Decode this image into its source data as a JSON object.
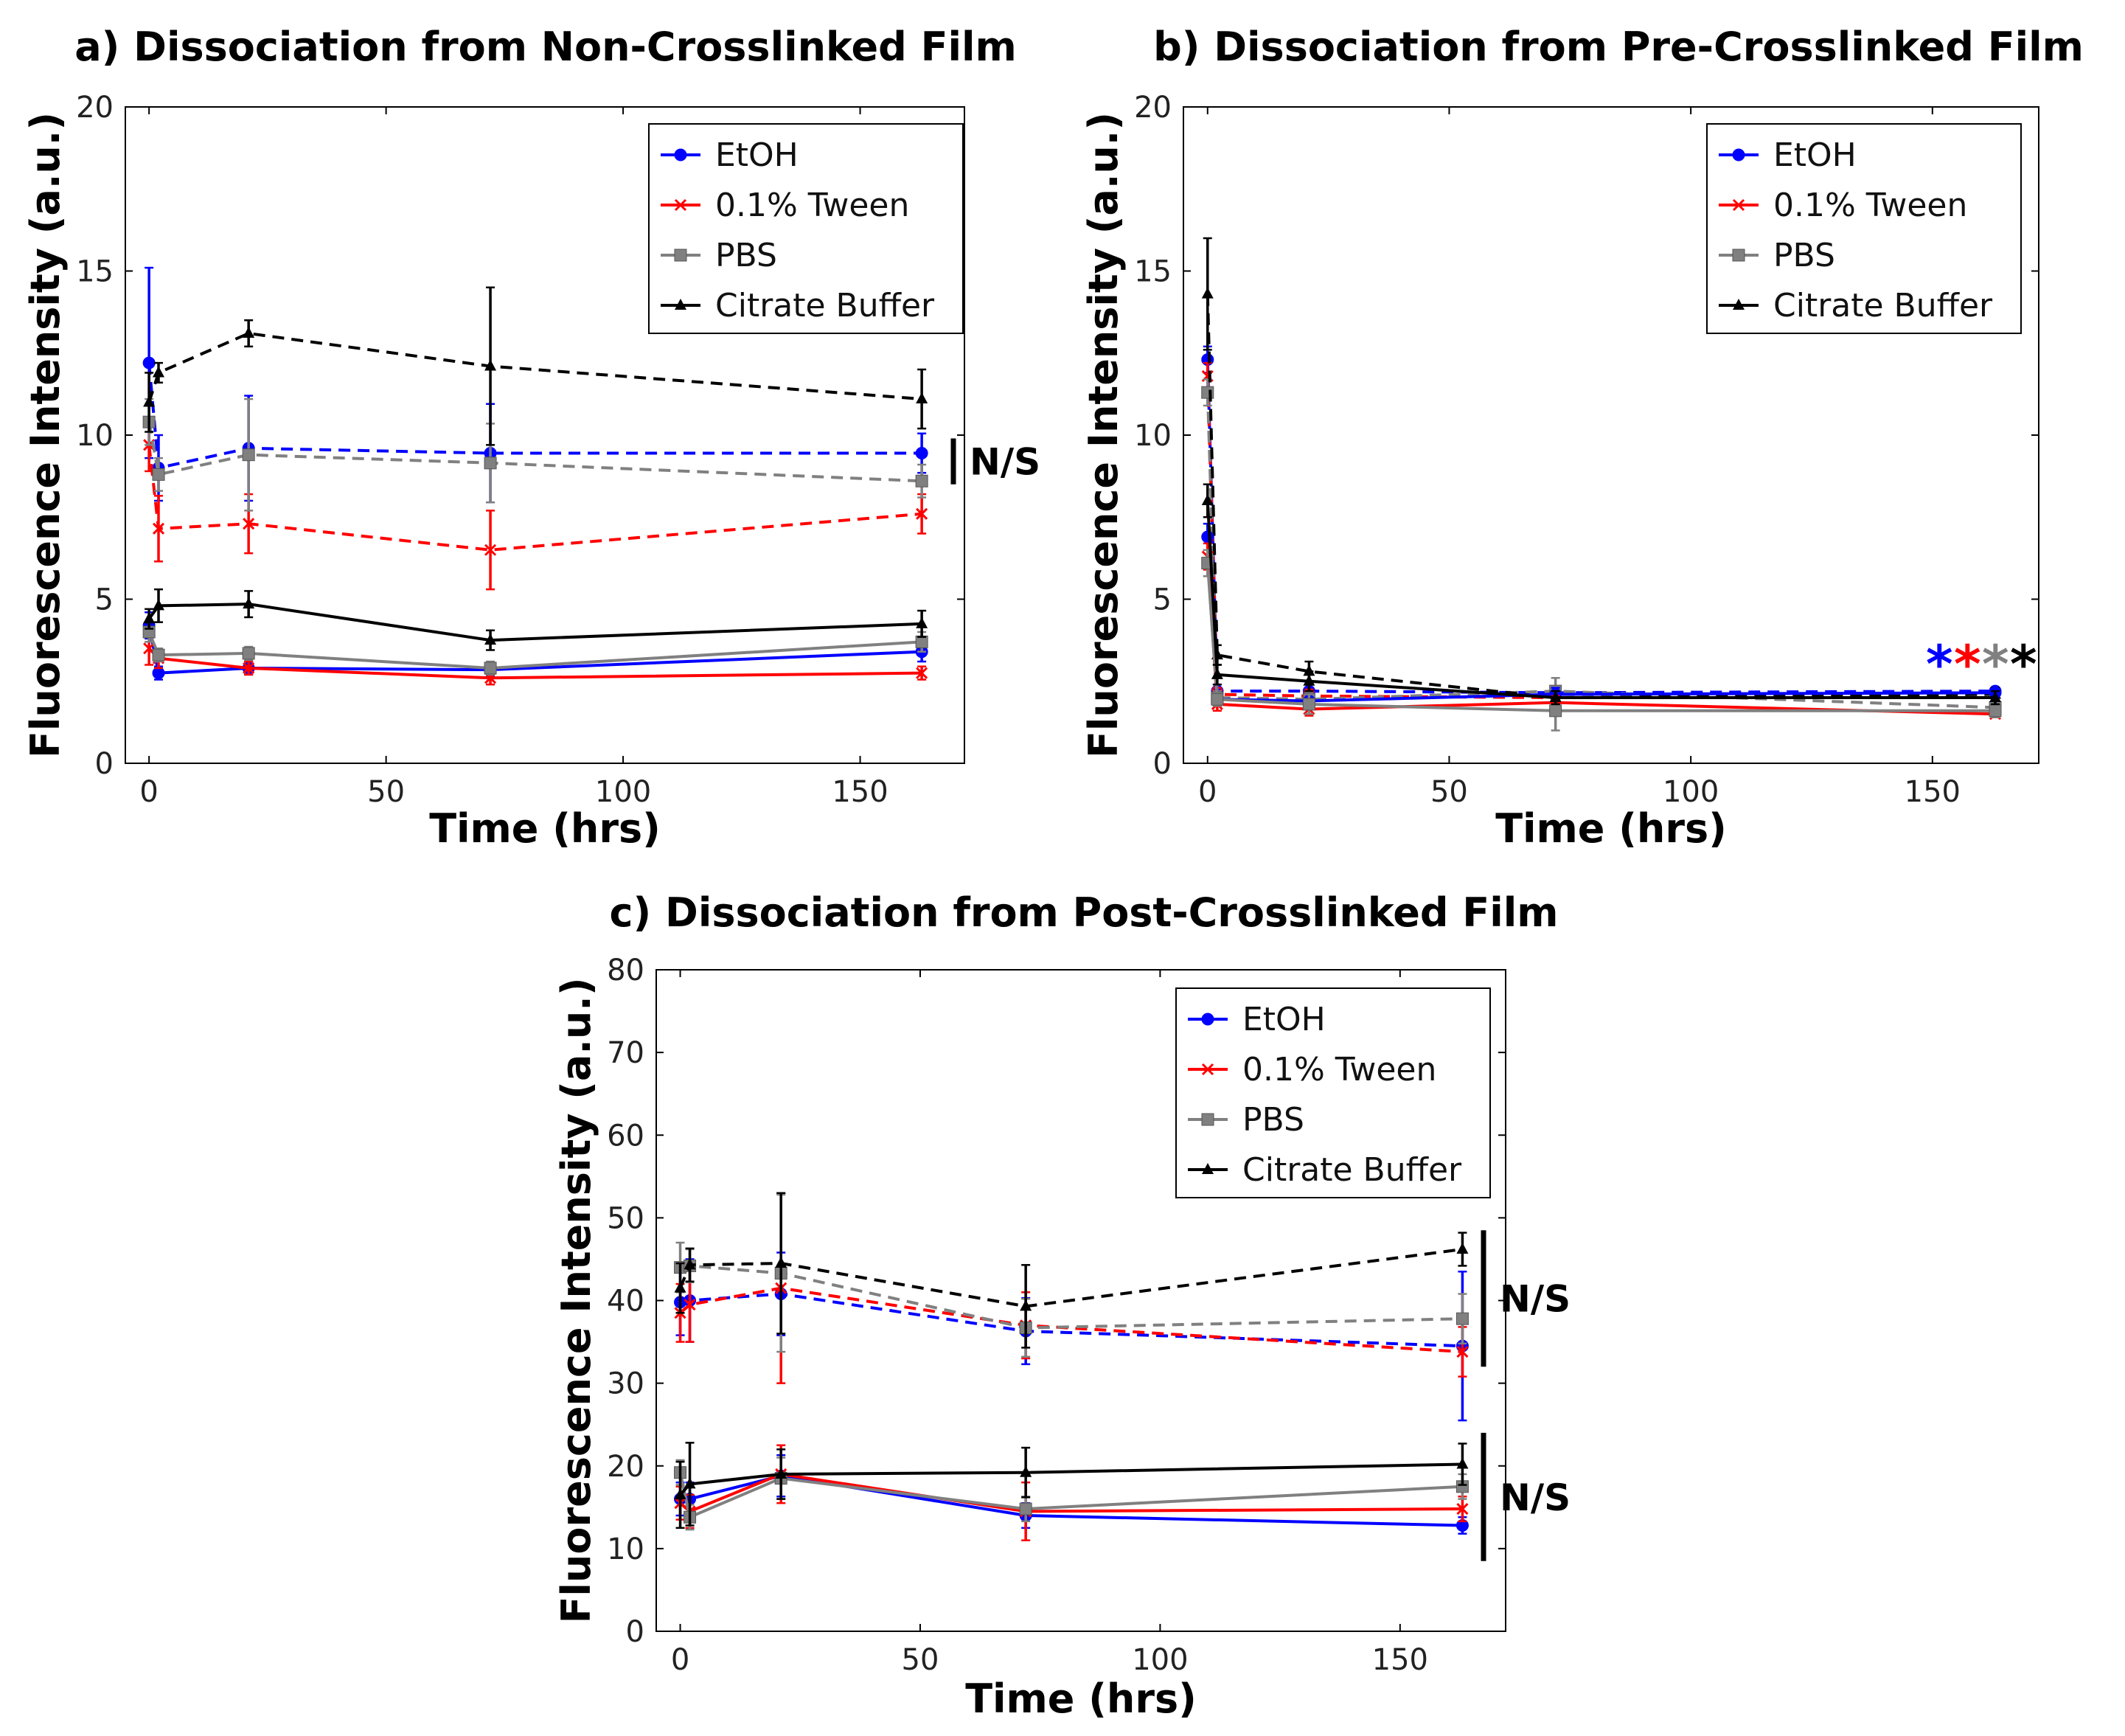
{
  "chart_data": [
    {
      "type": "line",
      "title": "a) Dissociation from Non-Crosslinked Film",
      "xlabel": "Time (hrs)",
      "ylabel": "Fluorescence Intensity (a.u.)",
      "xlim": [
        -5,
        172
      ],
      "ylim": [
        0,
        20
      ],
      "xticks": [
        "0",
        "50",
        "100",
        "150"
      ],
      "yticks": [
        "0",
        "5",
        "10",
        "15",
        "20"
      ],
      "legend": [
        "EtOH",
        "0.1% Tween",
        "PBS",
        "Citrate Buffer"
      ],
      "legend_position": "upper-right",
      "x": [
        0,
        2,
        21,
        72,
        163
      ],
      "series": [
        {
          "name": "EtOH",
          "color": "#0000ff",
          "marker": "circle",
          "linestyle": "dashed",
          "values": [
            12.2,
            9.0,
            9.6,
            9.45,
            9.45
          ],
          "errors": [
            2.9,
            1.0,
            1.6,
            1.5,
            0.6
          ]
        },
        {
          "name": "0.1% Tween",
          "color": "#ff0000",
          "marker": "x",
          "linestyle": "dashed",
          "values": [
            9.7,
            7.15,
            7.3,
            6.5,
            7.6
          ],
          "errors": [
            0.8,
            1.0,
            0.9,
            1.2,
            0.6
          ]
        },
        {
          "name": "PBS",
          "color": "#808080",
          "marker": "square",
          "linestyle": "dashed",
          "values": [
            10.4,
            8.8,
            9.4,
            9.15,
            8.6
          ],
          "errors": [
            0.7,
            0.5,
            1.7,
            1.2,
            0.5
          ]
        },
        {
          "name": "Citrate Buffer",
          "color": "#000000",
          "marker": "triangle",
          "linestyle": "dashed",
          "values": [
            11.0,
            11.9,
            13.1,
            12.1,
            11.1
          ],
          "errors": [
            0.9,
            0.3,
            0.4,
            2.4,
            0.9
          ]
        },
        {
          "name": "EtOH",
          "color": "#0000ff",
          "marker": "circle",
          "linestyle": "solid",
          "values": [
            4.2,
            2.75,
            2.9,
            2.85,
            3.4
          ],
          "errors": [
            0.4,
            0.2,
            0.2,
            0.2,
            0.3
          ]
        },
        {
          "name": "0.1% Tween",
          "color": "#ff0000",
          "marker": "x",
          "linestyle": "solid",
          "values": [
            3.5,
            3.2,
            2.9,
            2.6,
            2.75
          ],
          "errors": [
            0.5,
            0.3,
            0.2,
            0.2,
            0.2
          ]
        },
        {
          "name": "PBS",
          "color": "#808080",
          "marker": "square",
          "linestyle": "solid",
          "values": [
            4.0,
            3.3,
            3.35,
            2.9,
            3.7
          ],
          "errors": [
            0.3,
            0.2,
            0.2,
            0.2,
            0.3
          ]
        },
        {
          "name": "Citrate Buffer",
          "color": "#000000",
          "marker": "triangle",
          "linestyle": "solid",
          "values": [
            4.4,
            4.8,
            4.85,
            3.75,
            4.25
          ],
          "errors": [
            0.3,
            0.5,
            0.4,
            0.3,
            0.4
          ]
        }
      ],
      "annotations": [
        {
          "text": "N/S",
          "type": "bracket",
          "y_range": [
            8.5,
            9.9
          ]
        }
      ]
    },
    {
      "type": "line",
      "title": "b) Dissociation from Pre-Crosslinked Film",
      "xlabel": "Time (hrs)",
      "ylabel": "Fluorescence Intensity (a.u.)",
      "xlim": [
        -5,
        172
      ],
      "ylim": [
        0,
        20
      ],
      "xticks": [
        "0",
        "50",
        "100",
        "150"
      ],
      "yticks": [
        "0",
        "5",
        "10",
        "15",
        "20"
      ],
      "legend": [
        "EtOH",
        "0.1% Tween",
        "PBS",
        "Citrate Buffer"
      ],
      "legend_position": "upper-right",
      "x": [
        0,
        2,
        21,
        72,
        163
      ],
      "series": [
        {
          "name": "EtOH",
          "color": "#0000ff",
          "marker": "circle",
          "linestyle": "dashed",
          "values": [
            12.3,
            2.2,
            2.2,
            2.15,
            2.2
          ],
          "errors": [
            0.4,
            0.2,
            0.2,
            0.2,
            0.1
          ]
        },
        {
          "name": "0.1% Tween",
          "color": "#ff0000",
          "marker": "x",
          "linestyle": "dashed",
          "values": [
            11.8,
            2.1,
            2.05,
            2.0,
            2.0
          ],
          "errors": [
            0.4,
            0.2,
            0.2,
            0.2,
            0.1
          ]
        },
        {
          "name": "PBS",
          "color": "#808080",
          "marker": "square",
          "linestyle": "dashed",
          "values": [
            11.3,
            2.0,
            1.95,
            2.2,
            1.7
          ],
          "errors": [
            0.4,
            0.2,
            0.2,
            0.4,
            0.2
          ]
        },
        {
          "name": "Citrate Buffer",
          "color": "#000000",
          "marker": "triangle",
          "linestyle": "dashed",
          "values": [
            14.3,
            3.3,
            2.8,
            2.0,
            2.1
          ],
          "errors": [
            1.7,
            0.3,
            0.3,
            0.2,
            0.2
          ]
        },
        {
          "name": "EtOH",
          "color": "#0000ff",
          "marker": "circle",
          "linestyle": "solid",
          "values": [
            6.9,
            1.95,
            1.9,
            2.1,
            2.15
          ],
          "errors": [
            0.4,
            0.2,
            0.2,
            0.2,
            0.1
          ]
        },
        {
          "name": "0.1% Tween",
          "color": "#ff0000",
          "marker": "x",
          "linestyle": "solid",
          "values": [
            6.3,
            1.8,
            1.65,
            1.85,
            1.5
          ],
          "errors": [
            0.4,
            0.2,
            0.2,
            0.2,
            0.1
          ]
        },
        {
          "name": "PBS",
          "color": "#808080",
          "marker": "square",
          "linestyle": "solid",
          "values": [
            6.1,
            1.95,
            1.8,
            1.6,
            1.6
          ],
          "errors": [
            0.4,
            0.2,
            0.3,
            0.6,
            0.2
          ]
        },
        {
          "name": "Citrate Buffer",
          "color": "#000000",
          "marker": "triangle",
          "linestyle": "solid",
          "values": [
            8.0,
            2.7,
            2.5,
            2.0,
            2.0
          ],
          "errors": [
            0.5,
            0.3,
            0.3,
            0.2,
            0.2
          ]
        }
      ],
      "annotations": [
        {
          "text": "****",
          "type": "significance",
          "colors": [
            "#0000ff",
            "#ff0000",
            "#808080",
            "#000000"
          ]
        }
      ]
    },
    {
      "type": "line",
      "title": "c) Dissociation from Post-Crosslinked Film",
      "xlabel": "Time (hrs)",
      "ylabel": "Fluorescence Intensity (a.u.)",
      "xlim": [
        -5,
        172
      ],
      "ylim": [
        0,
        80
      ],
      "xticks": [
        "0",
        "50",
        "100",
        "150"
      ],
      "yticks": [
        "0",
        "10",
        "20",
        "30",
        "40",
        "50",
        "60",
        "70",
        "80"
      ],
      "legend": [
        "EtOH",
        "0.1% Tween",
        "PBS",
        "Citrate Buffer"
      ],
      "legend_position": "upper-right",
      "x": [
        0,
        2,
        21,
        72,
        163
      ],
      "series": [
        {
          "name": "EtOH",
          "color": "#0000ff",
          "marker": "circle",
          "linestyle": "dashed",
          "values": [
            39.8,
            40.0,
            40.8,
            36.3,
            34.5
          ],
          "errors": [
            4.0,
            5.0,
            5.0,
            4.0,
            9.0
          ]
        },
        {
          "name": "0.1% Tween",
          "color": "#ff0000",
          "marker": "x",
          "linestyle": "dashed",
          "values": [
            38.5,
            39.5,
            41.5,
            37.0,
            33.8
          ],
          "errors": [
            3.5,
            4.5,
            11.5,
            4.0,
            3.0
          ]
        },
        {
          "name": "PBS",
          "color": "#808080",
          "marker": "square",
          "linestyle": "dashed",
          "values": [
            44.0,
            44.2,
            43.3,
            36.7,
            37.8
          ],
          "errors": [
            3.0,
            2.0,
            9.5,
            3.5,
            3.0
          ]
        },
        {
          "name": "Citrate Buffer",
          "color": "#000000",
          "marker": "triangle",
          "linestyle": "dashed",
          "values": [
            41.5,
            44.3,
            44.5,
            39.3,
            46.2
          ],
          "errors": [
            3.0,
            2.0,
            8.5,
            5.0,
            2.0
          ]
        },
        {
          "name": "EtOH",
          "color": "#0000ff",
          "marker": "circle",
          "linestyle": "solid",
          "values": [
            16.0,
            16.0,
            18.8,
            14.0,
            12.8
          ],
          "errors": [
            2.0,
            2.0,
            2.5,
            1.5,
            1.0
          ]
        },
        {
          "name": "0.1% Tween",
          "color": "#ff0000",
          "marker": "x",
          "linestyle": "solid",
          "values": [
            15.5,
            14.5,
            19.0,
            14.5,
            14.8
          ],
          "errors": [
            2.0,
            2.0,
            3.5,
            3.5,
            1.5
          ]
        },
        {
          "name": "PBS",
          "color": "#808080",
          "marker": "square",
          "linestyle": "solid",
          "values": [
            19.2,
            13.8,
            18.5,
            14.8,
            17.5
          ],
          "errors": [
            1.5,
            1.5,
            2.5,
            1.5,
            1.5
          ]
        },
        {
          "name": "Citrate Buffer",
          "color": "#000000",
          "marker": "triangle",
          "linestyle": "solid",
          "values": [
            16.5,
            17.8,
            19.0,
            19.2,
            20.2
          ],
          "errors": [
            4.0,
            5.0,
            3.0,
            3.0,
            2.5
          ]
        }
      ],
      "annotations": [
        {
          "text": "N/S",
          "type": "bracket",
          "y_range": [
            32,
            48.5
          ]
        },
        {
          "text": "N/S",
          "type": "bracket",
          "y_range": [
            8.5,
            24
          ]
        }
      ]
    }
  ]
}
